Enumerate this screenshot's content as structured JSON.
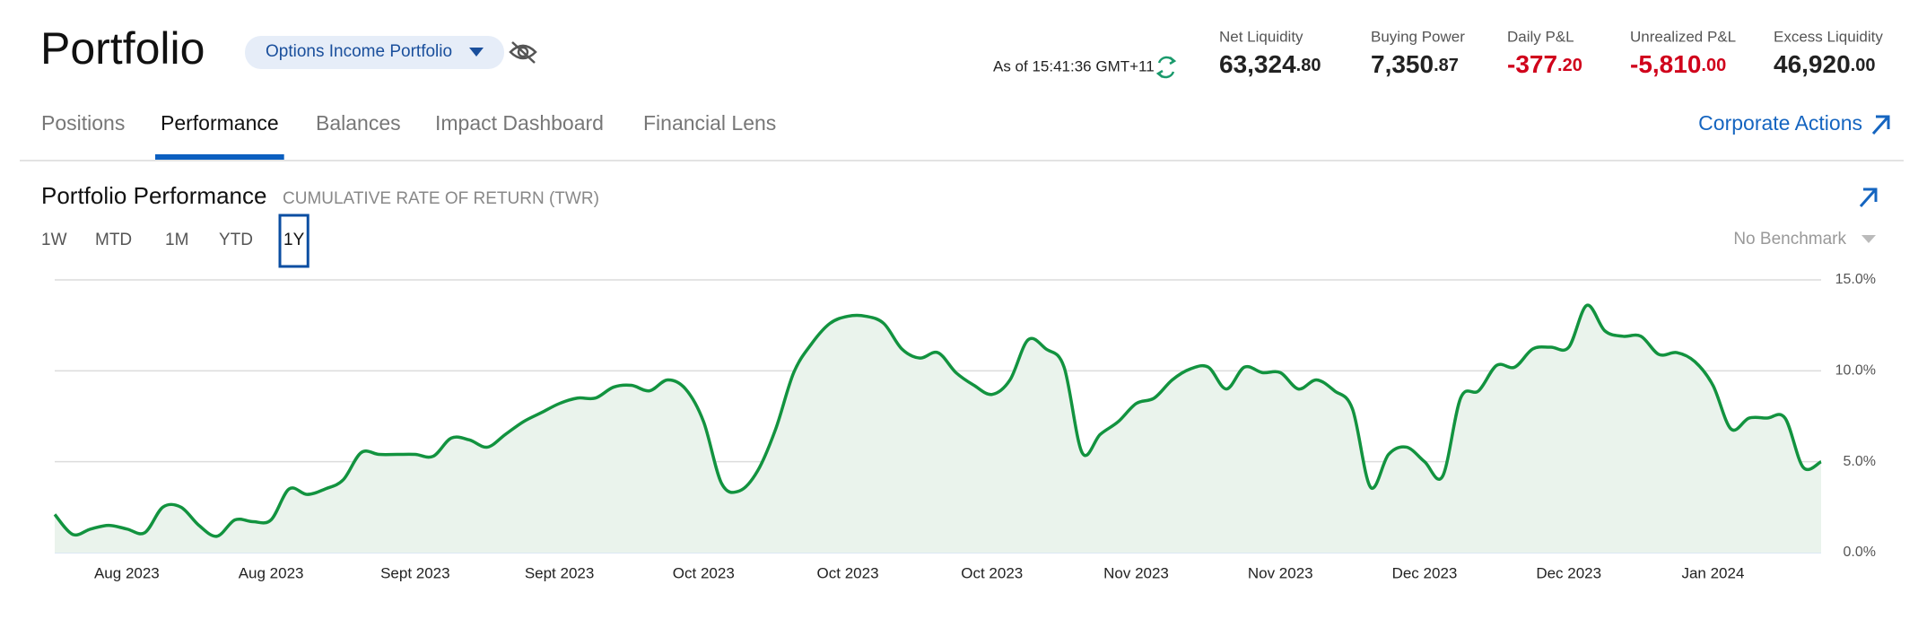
{
  "header": {
    "title": "Portfolio",
    "account": "Options Income Portfolio",
    "as_of": "As of 15:41:36 GMT+11",
    "metrics": [
      {
        "label": "Net Liquidity",
        "whole": "63,324",
        "fraction": ".80",
        "color": "#222222"
      },
      {
        "label": "Buying Power",
        "whole": "7,350",
        "fraction": ".87",
        "color": "#222222"
      },
      {
        "label": "Daily P&L",
        "whole": "-377",
        "fraction": ".20",
        "color": "#d0021b"
      },
      {
        "label": "Unrealized P&L",
        "whole": "-5,810",
        "fraction": ".00",
        "color": "#d0021b"
      },
      {
        "label": "Excess Liquidity",
        "whole": "46,920",
        "fraction": ".00",
        "color": "#222222"
      }
    ]
  },
  "tabs": {
    "items": [
      "Positions",
      "Performance",
      "Balances",
      "Impact Dashboard",
      "Financial Lens"
    ],
    "active": 1,
    "link": "Corporate Actions"
  },
  "panel": {
    "title": "Portfolio Performance",
    "subtitle": "CUMULATIVE RATE OF RETURN (TWR)",
    "ranges": [
      "1W",
      "MTD",
      "1M",
      "YTD",
      "1Y"
    ],
    "selected_range": 4,
    "benchmark": "No Benchmark"
  },
  "chart_data": {
    "type": "area",
    "color": "#12933f",
    "fill": "#eaf3ec",
    "grid": true,
    "ylim": [
      0,
      15
    ],
    "yticks": [
      {
        "value": 0,
        "label": "0.0%"
      },
      {
        "value": 5,
        "label": "5.0%"
      },
      {
        "value": 10,
        "label": "10.0%"
      },
      {
        "value": 15,
        "label": "15.0%"
      }
    ],
    "categories": [
      null,
      null,
      null,
      null,
      "Aug 2023",
      null,
      null,
      null,
      null,
      null,
      null,
      null,
      "Aug 2023",
      null,
      null,
      null,
      null,
      null,
      null,
      null,
      "Sept 2023",
      null,
      null,
      null,
      null,
      null,
      null,
      null,
      "Sept 2023",
      null,
      null,
      null,
      null,
      null,
      null,
      null,
      "Oct 2023",
      null,
      null,
      null,
      null,
      null,
      null,
      null,
      "Oct 2023",
      null,
      null,
      null,
      null,
      null,
      null,
      null,
      "Oct 2023",
      null,
      null,
      null,
      null,
      null,
      null,
      null,
      "Nov 2023",
      null,
      null,
      null,
      null,
      null,
      null,
      null,
      "Nov 2023",
      null,
      null,
      null,
      null,
      null,
      null,
      null,
      "Dec 2023",
      null,
      null,
      null,
      null,
      null,
      null,
      null,
      "Dec 2023",
      null,
      null,
      null,
      null,
      null,
      null,
      null,
      "Jan 2024",
      null,
      null,
      null,
      null,
      null,
      null
    ],
    "values": [
      2.1,
      1.0,
      1.3,
      1.5,
      1.3,
      1.1,
      2.5,
      2.5,
      1.5,
      0.9,
      1.8,
      1.7,
      1.8,
      3.5,
      3.2,
      3.5,
      4.0,
      5.5,
      5.4,
      5.4,
      5.4,
      5.3,
      6.3,
      6.2,
      5.8,
      6.5,
      7.2,
      7.7,
      8.2,
      8.5,
      8.5,
      9.1,
      9.2,
      8.9,
      9.5,
      9.0,
      7.2,
      3.8,
      3.4,
      4.5,
      6.8,
      9.9,
      11.5,
      12.6,
      13.0,
      13.0,
      12.6,
      11.2,
      10.7,
      11.0,
      9.9,
      9.2,
      8.7,
      9.5,
      11.7,
      11.2,
      10.2,
      5.5,
      6.5,
      7.2,
      8.2,
      8.5,
      9.5,
      10.1,
      10.2,
      9.0,
      10.2,
      9.9,
      9.9,
      9.0,
      9.5,
      8.9,
      7.9,
      3.6,
      5.4,
      5.8,
      5.0,
      4.2,
      8.5,
      8.9,
      10.3,
      10.2,
      11.2,
      11.3,
      11.3,
      13.6,
      12.2,
      11.9,
      11.9,
      10.9,
      11.0,
      10.5,
      9.2,
      6.8,
      7.4,
      7.4,
      7.4,
      4.7,
      5.0
    ]
  }
}
